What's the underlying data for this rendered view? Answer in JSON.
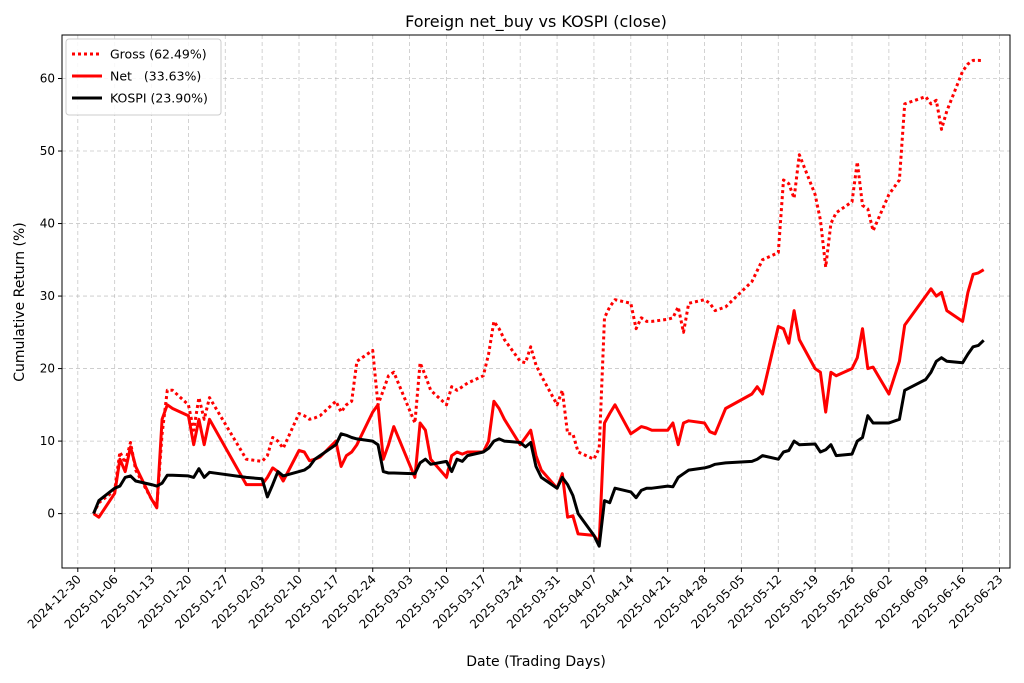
{
  "chart_data": {
    "type": "line",
    "title": "Foreign net_buy vs KOSPI (close)",
    "xlabel": "Date (Trading Days)",
    "ylabel": "Cumulative Return (%)",
    "grid": true,
    "legend_position": "top-left",
    "x_range": [
      "2024-12-27",
      "2025-06-25"
    ],
    "ylim": [
      -7.5,
      66
    ],
    "y_ticks": [
      0,
      10,
      20,
      30,
      40,
      50,
      60
    ],
    "x_ticks": [
      "2024-12-30",
      "2025-01-06",
      "2025-01-13",
      "2025-01-20",
      "2025-01-27",
      "2025-02-03",
      "2025-02-10",
      "2025-02-17",
      "2025-02-24",
      "2025-03-03",
      "2025-03-10",
      "2025-03-17",
      "2025-03-24",
      "2025-03-31",
      "2025-04-07",
      "2025-04-14",
      "2025-04-21",
      "2025-04-28",
      "2025-05-05",
      "2025-05-12",
      "2025-05-19",
      "2025-05-26",
      "2025-06-02",
      "2025-06-09",
      "2025-06-16",
      "2025-06-23"
    ],
    "x": [
      "2025-01-02",
      "2025-01-03",
      "2025-01-06",
      "2025-01-07",
      "2025-01-08",
      "2025-01-09",
      "2025-01-10",
      "2025-01-13",
      "2025-01-14",
      "2025-01-15",
      "2025-01-16",
      "2025-01-17",
      "2025-01-20",
      "2025-01-21",
      "2025-01-22",
      "2025-01-23",
      "2025-01-24",
      "2025-01-31",
      "2025-02-03",
      "2025-02-04",
      "2025-02-05",
      "2025-02-06",
      "2025-02-07",
      "2025-02-10",
      "2025-02-11",
      "2025-02-12",
      "2025-02-13",
      "2025-02-14",
      "2025-02-17",
      "2025-02-18",
      "2025-02-19",
      "2025-02-20",
      "2025-02-21",
      "2025-02-24",
      "2025-02-25",
      "2025-02-26",
      "2025-02-27",
      "2025-02-28",
      "2025-03-04",
      "2025-03-05",
      "2025-03-06",
      "2025-03-07",
      "2025-03-10",
      "2025-03-11",
      "2025-03-12",
      "2025-03-13",
      "2025-03-14",
      "2025-03-17",
      "2025-03-18",
      "2025-03-19",
      "2025-03-20",
      "2025-03-21",
      "2025-03-24",
      "2025-03-25",
      "2025-03-26",
      "2025-03-27",
      "2025-03-28",
      "2025-03-31",
      "2025-04-01",
      "2025-04-02",
      "2025-04-03",
      "2025-04-04",
      "2025-04-07",
      "2025-04-08",
      "2025-04-09",
      "2025-04-10",
      "2025-04-11",
      "2025-04-14",
      "2025-04-15",
      "2025-04-16",
      "2025-04-17",
      "2025-04-18",
      "2025-04-21",
      "2025-04-22",
      "2025-04-23",
      "2025-04-24",
      "2025-04-25",
      "2025-04-28",
      "2025-04-29",
      "2025-04-30",
      "2025-05-02",
      "2025-05-07",
      "2025-05-08",
      "2025-05-09",
      "2025-05-12",
      "2025-05-13",
      "2025-05-14",
      "2025-05-15",
      "2025-05-16",
      "2025-05-19",
      "2025-05-20",
      "2025-05-21",
      "2025-05-22",
      "2025-05-23",
      "2025-05-26",
      "2025-05-27",
      "2025-05-28",
      "2025-05-29",
      "2025-05-30",
      "2025-06-02",
      "2025-06-04",
      "2025-06-05",
      "2025-06-09",
      "2025-06-10",
      "2025-06-11",
      "2025-06-12",
      "2025-06-13",
      "2025-06-16",
      "2025-06-17",
      "2025-06-18",
      "2025-06-19",
      "2025-06-20"
    ],
    "series": [
      {
        "name": "Gross",
        "legend_label": "Gross (62.49%)",
        "color": "#ff0000",
        "style": "dotted",
        "values": [
          0,
          1.5,
          3.2,
          8.5,
          7.0,
          9.8,
          6.0,
          2.0,
          1.0,
          11.0,
          17.0,
          17.0,
          15.0,
          11.5,
          16.0,
          13.0,
          16.0,
          7.5,
          7.2,
          8.0,
          10.5,
          10.0,
          9.0,
          13.8,
          13.5,
          13.0,
          13.2,
          13.5,
          15.5,
          14.0,
          15.0,
          15.5,
          21.0,
          22.5,
          15.0,
          17.0,
          19.0,
          19.5,
          12.5,
          20.8,
          19.0,
          17.0,
          15.0,
          17.5,
          17.0,
          17.5,
          18.0,
          19.0,
          22.0,
          26.5,
          25.5,
          24.0,
          21.0,
          20.8,
          23.0,
          20.5,
          19.0,
          15.0,
          17.0,
          11.0,
          11.0,
          8.5,
          7.5,
          9.0,
          27.0,
          28.5,
          29.5,
          29.0,
          25.5,
          27.0,
          26.5,
          26.5,
          26.8,
          27.0,
          28.5,
          25.0,
          29.0,
          29.5,
          29.0,
          28.0,
          28.5,
          32.0,
          33.5,
          35.0,
          36.0,
          46.0,
          45.5,
          43.5,
          49.5,
          44.0,
          40.5,
          34.0,
          40.0,
          41.5,
          43.0,
          48.5,
          42.5,
          42.0,
          39.0,
          44.0,
          46.0,
          56.5,
          57.5,
          56.5,
          57.0,
          53.0,
          55.5,
          61.0,
          62.0,
          62.5,
          62.5,
          62.49
        ]
      },
      {
        "name": "Net",
        "legend_label": "Net   (33.63%)",
        "color": "#ff0000",
        "style": "solid",
        "values": [
          0,
          -0.5,
          2.8,
          7.5,
          5.8,
          9.2,
          6.5,
          2.0,
          0.8,
          13.0,
          15.0,
          14.5,
          13.5,
          9.5,
          13.0,
          9.5,
          13.0,
          4.0,
          4.0,
          5.0,
          6.3,
          5.8,
          4.5,
          8.7,
          8.5,
          7.3,
          7.5,
          7.8,
          10.0,
          6.5,
          8.0,
          8.5,
          9.5,
          14.0,
          15.0,
          7.5,
          9.5,
          12.0,
          5.0,
          12.5,
          11.5,
          7.5,
          5.0,
          8.0,
          8.5,
          8.2,
          8.5,
          8.5,
          10.0,
          15.5,
          14.5,
          13.0,
          9.5,
          10.5,
          11.5,
          8.0,
          6.0,
          3.5,
          5.5,
          -0.5,
          -0.3,
          -2.8,
          -3.0,
          -4.0,
          12.5,
          13.8,
          15.0,
          11.0,
          11.5,
          12.0,
          11.8,
          11.5,
          11.5,
          12.5,
          9.5,
          12.5,
          12.8,
          12.5,
          11.3,
          11.0,
          14.5,
          16.5,
          17.5,
          16.5,
          25.8,
          25.5,
          23.5,
          28.0,
          24.0,
          20.0,
          19.5,
          14.0,
          19.5,
          19.0,
          20.0,
          21.5,
          25.5,
          20.0,
          20.2,
          16.5,
          21.0,
          26.0,
          30.0,
          31.0,
          30.0,
          30.5,
          28.0,
          26.5,
          30.5,
          33.0,
          33.2,
          33.63
        ]
      },
      {
        "name": "KOSPI",
        "legend_label": "KOSPI (23.90%)",
        "color": "#000000",
        "style": "solid",
        "values": [
          0,
          1.8,
          3.5,
          3.8,
          5.0,
          5.2,
          4.5,
          4.0,
          3.8,
          4.2,
          5.3,
          5.3,
          5.2,
          5.0,
          6.2,
          5.0,
          5.7,
          5.0,
          4.8,
          2.3,
          4.0,
          5.8,
          5.2,
          5.8,
          6.0,
          6.5,
          7.5,
          8.0,
          9.5,
          11.0,
          10.8,
          10.5,
          10.3,
          10.0,
          9.5,
          5.8,
          5.6,
          5.6,
          5.5,
          7.0,
          7.5,
          6.8,
          7.2,
          5.8,
          7.5,
          7.2,
          8.0,
          8.5,
          9.0,
          10.0,
          10.3,
          10.0,
          9.8,
          9.2,
          9.8,
          6.5,
          5.0,
          3.5,
          5.0,
          4.0,
          2.5,
          0.0,
          -3.0,
          -4.5,
          1.8,
          1.5,
          3.5,
          3.0,
          2.2,
          3.2,
          3.5,
          3.5,
          3.8,
          3.7,
          5.0,
          5.5,
          6.0,
          6.3,
          6.5,
          6.8,
          7.0,
          7.2,
          7.5,
          8.0,
          7.5,
          8.5,
          8.7,
          10.0,
          9.5,
          9.6,
          8.5,
          8.8,
          9.5,
          8.0,
          8.2,
          10.0,
          10.5,
          13.5,
          12.5,
          12.5,
          13.0,
          17.0,
          18.5,
          19.5,
          21.0,
          21.5,
          21.0,
          20.8,
          22.0,
          23.0,
          23.2,
          23.9
        ]
      }
    ]
  }
}
